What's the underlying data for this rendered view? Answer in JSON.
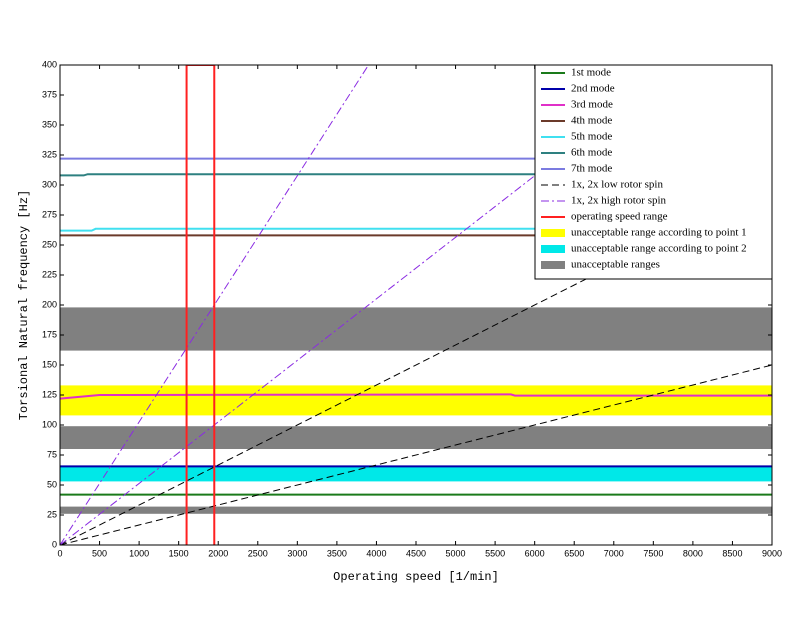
{
  "chart_data": {
    "type": "line",
    "xlabel": "Operating speed [1/min]",
    "ylabel": "Torsional Natural frequency [Hz]",
    "xlim": [
      0,
      9000
    ],
    "xticks": [
      0,
      500,
      1000,
      1500,
      2000,
      2500,
      3000,
      3500,
      4000,
      4500,
      5000,
      5500,
      6000,
      6500,
      7000,
      7500,
      8000,
      8500,
      9000
    ],
    "ylim": [
      0,
      400
    ],
    "yticks": [
      0,
      25,
      50,
      75,
      100,
      125,
      150,
      175,
      200,
      225,
      250,
      275,
      300,
      325,
      350,
      375,
      400
    ],
    "legend": "upper right",
    "series": [
      {
        "name": "1st mode",
        "color": "#1a7a1a",
        "style": "solid",
        "lines": [
          {
            "x": [
              0,
              9000
            ],
            "values": [
              42,
              42
            ]
          }
        ]
      },
      {
        "name": "2nd mode",
        "color": "#0000aa",
        "style": "solid",
        "lines": [
          {
            "x": [
              0,
              9000
            ],
            "values": [
              65.5,
              65.5
            ]
          }
        ]
      },
      {
        "name": "3rd mode",
        "color": "#e030c8",
        "style": "solid",
        "lines": [
          {
            "x": [
              0,
              500,
              5700,
              5750,
              9000
            ],
            "values": [
              122,
              125,
              125.5,
              124.5,
              124.5
            ]
          }
        ]
      },
      {
        "name": "4th mode",
        "color": "#6b3a2a",
        "style": "solid",
        "lines": [
          {
            "x": [
              0,
              9000
            ],
            "values": [
              258,
              258
            ]
          }
        ]
      },
      {
        "name": "5th mode",
        "color": "#40e0f0",
        "style": "solid",
        "lines": [
          {
            "x": [
              0,
              400,
              450,
              9000
            ],
            "values": [
              262,
              262,
              263.5,
              263.5
            ]
          }
        ]
      },
      {
        "name": "6th mode",
        "color": "#2e8080",
        "style": "solid",
        "lines": [
          {
            "x": [
              0,
              300,
              350,
              9000
            ],
            "values": [
              308,
              308,
              309,
              309
            ]
          }
        ]
      },
      {
        "name": "7th mode",
        "color": "#7b7be0",
        "style": "solid",
        "lines": [
          {
            "x": [
              0,
              9000
            ],
            "values": [
              322,
              322
            ]
          }
        ]
      },
      {
        "name": "1x, 2x low rotor spin",
        "color": "#000000",
        "style": "dashed",
        "lines": [
          {
            "x": [
              0,
              9000
            ],
            "values": [
              0,
              150
            ]
          },
          {
            "x": [
              0,
              9000
            ],
            "values": [
              0,
              300
            ]
          }
        ]
      },
      {
        "name": "1x, 2x high rotor spin",
        "color": "#8a2be2",
        "style": "dashdot",
        "lines": [
          {
            "x": [
              0,
              7800
            ],
            "values": [
              0,
              400
            ]
          },
          {
            "x": [
              0,
              3900
            ],
            "values": [
              0,
              400
            ]
          }
        ]
      },
      {
        "name": "operating speed range",
        "color": "#ff2020",
        "style": "solid",
        "lines": [
          {
            "x": [
              1600,
              1600,
              1950,
              1950
            ],
            "values": [
              0,
              400,
              400,
              0
            ]
          }
        ]
      },
      {
        "name": "unacceptable range according to point 1",
        "color": "#ffff00",
        "style": "band",
        "ranges": [
          [
            108,
            133
          ]
        ]
      },
      {
        "name": "unacceptable range according to point 2",
        "color": "#00e8e8",
        "style": "band",
        "ranges": [
          [
            53,
            65
          ]
        ]
      },
      {
        "name": "unacceptable ranges",
        "color": "#808080",
        "style": "band",
        "ranges": [
          [
            26,
            32
          ],
          [
            80,
            99
          ],
          [
            162,
            198
          ]
        ]
      }
    ]
  }
}
